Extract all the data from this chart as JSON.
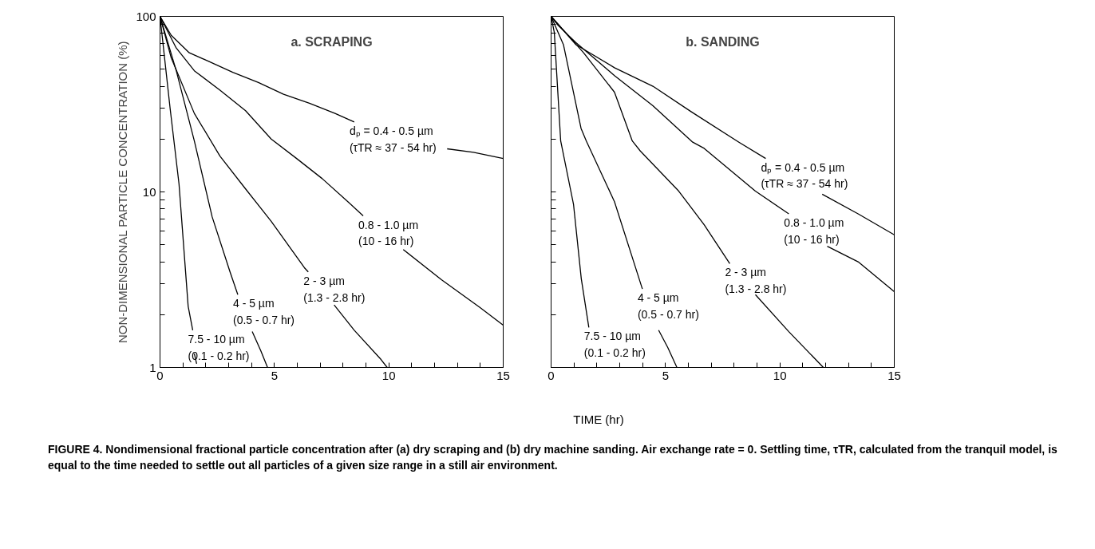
{
  "chart_data": [
    {
      "type": "line",
      "title": "a. SCRAPING",
      "ylabel": "NON-DIMENSIONAL PARTICLE CONCENTRATION (%)",
      "xlabel": "TIME (hr)",
      "log": "y",
      "grid": false,
      "marker": "none",
      "line_style": "solid",
      "xlim": [
        0,
        15
      ],
      "ylim": [
        1,
        100
      ],
      "xticks": [
        0,
        {
          "value": 1,
          "label": null
        },
        {
          "value": 2,
          "label": null
        },
        {
          "value": 3,
          "label": null
        },
        {
          "value": 4,
          "label": null
        },
        5,
        {
          "value": 6,
          "label": null
        },
        {
          "value": 7,
          "label": null
        },
        {
          "value": 8,
          "label": null
        },
        {
          "value": 9,
          "label": null
        },
        10,
        {
          "value": 11,
          "label": null
        },
        {
          "value": 12,
          "label": null
        },
        {
          "value": 13,
          "label": null
        },
        {
          "value": 14,
          "label": null
        },
        15
      ],
      "yticks": [
        1,
        {
          "value": 2,
          "label": null
        },
        {
          "value": 3,
          "label": null
        },
        {
          "value": 4,
          "label": null
        },
        {
          "value": 5,
          "label": null
        },
        {
          "value": 6,
          "label": null
        },
        {
          "value": 7,
          "label": null
        },
        {
          "value": 8,
          "label": null
        },
        {
          "value": 9,
          "label": null
        },
        10,
        {
          "value": 20,
          "label": null
        },
        {
          "value": 30,
          "label": null
        },
        {
          "value": 40,
          "label": null
        },
        {
          "value": 50,
          "label": null
        },
        {
          "value": 60,
          "label": null
        },
        {
          "value": 70,
          "label": null
        },
        {
          "value": 80,
          "label": null
        },
        {
          "value": 90,
          "label": null
        },
        100
      ],
      "series": [
        {
          "name": "dₚ = 0.4 - 0.5 µm\n(τTR ≈ 37 - 54 hr)",
          "color": "#000000",
          "x": [
            0,
            0.49,
            1.28,
            2.05,
            3.18,
            4.3,
            5.4,
            6.53,
            7.65,
            8.49
          ],
          "values": [
            100,
            78,
            62,
            56,
            48,
            42,
            36,
            32,
            28,
            25
          ]
        },
        {
          "color": "#000000",
          "x": [
            12.55,
            13.7,
            15
          ],
          "values": [
            17.6,
            16.8,
            15.5
          ]
        },
        {
          "name": "0.8 - 1.0 µm\n(10 - 16 hr)",
          "color": "#000000",
          "x": [
            0,
            0.71,
            1.5,
            2.62,
            3.74,
            4.86,
            5.97,
            7.09,
            8.21,
            8.88
          ],
          "values": [
            100,
            66,
            49,
            38,
            29,
            20,
            15.5,
            11.9,
            8.8,
            7.3
          ]
        },
        {
          "color": "#000000",
          "x": [
            10.63,
            12.3,
            13.98,
            15
          ],
          "values": [
            4.7,
            3.16,
            2.2,
            1.74
          ]
        },
        {
          "name": "2 - 3 µm\n(1.3 - 2.8 hr)",
          "color": "#000000",
          "x": [
            0,
            0.49,
            1.5,
            2.62,
            3.74,
            4.86,
            6.31,
            6.48
          ],
          "values": [
            100,
            58,
            28,
            16,
            10.4,
            6.8,
            3.7,
            3.5
          ]
        },
        {
          "color": "#000000",
          "x": [
            7.61,
            8.49,
            9.66,
            9.93
          ],
          "values": [
            2.27,
            1.63,
            1.11,
            1.0
          ]
        },
        {
          "name": "4 - 5 µm\n(0.5 - 0.7 hr)",
          "color": "#000000",
          "x": [
            0,
            0.71,
            1.5,
            2.28,
            3.06,
            3.4
          ],
          "values": [
            100,
            49,
            19.5,
            7.2,
            3.5,
            2.6
          ]
        },
        {
          "color": "#000000",
          "x": [
            4.03,
            4.4,
            4.7
          ],
          "values": [
            1.6,
            1.25,
            1.0
          ]
        },
        {
          "name": "7.5 - 10 µm\n(0.1 - 0.2 hr)",
          "color": "#000000",
          "x": [
            0,
            0.44,
            0.83,
            1.23,
            1.43
          ],
          "values": [
            100,
            30,
            11.1,
            2.23,
            1.63
          ]
        },
        {
          "color": "#000000",
          "x": [
            1.5,
            1.6
          ],
          "values": [
            1.2,
            1.05
          ]
        }
      ],
      "annotations": [
        "FIGURE 4.  Nondimensional fractional particle concentration after (a) dry scraping and (b) dry machine sanding. Air exchange rate = 0. Settling time, τTR, calculated from the tranquil model, is equal to the time needed to settle out all particles of a given size range in a still air environment."
      ]
    },
    {
      "type": "line",
      "title": "b. SANDING",
      "tick_labels": "x",
      "log": "y",
      "grid": false,
      "marker": "none",
      "line_style": "solid",
      "xlim": [
        0,
        15
      ],
      "ylim": [
        1,
        100
      ],
      "xticks": [
        0,
        {
          "value": 1,
          "label": null
        },
        {
          "value": 2,
          "label": null
        },
        {
          "value": 3,
          "label": null
        },
        {
          "value": 4,
          "label": null
        },
        5,
        {
          "value": 6,
          "label": null
        },
        {
          "value": 7,
          "label": null
        },
        {
          "value": 8,
          "label": null
        },
        {
          "value": 9,
          "label": null
        },
        10,
        {
          "value": 11,
          "label": null
        },
        {
          "value": 12,
          "label": null
        },
        {
          "value": 13,
          "label": null
        },
        {
          "value": 14,
          "label": null
        },
        15
      ],
      "yticks": [
        1,
        {
          "value": 2,
          "label": null
        },
        {
          "value": 3,
          "label": null
        },
        {
          "value": 4,
          "label": null
        },
        {
          "value": 5,
          "label": null
        },
        {
          "value": 6,
          "label": null
        },
        {
          "value": 7,
          "label": null
        },
        {
          "value": 8,
          "label": null
        },
        {
          "value": 9,
          "label": null
        },
        10,
        {
          "value": 20,
          "label": null
        },
        {
          "value": 30,
          "label": null
        },
        {
          "value": 40,
          "label": null
        },
        {
          "value": 50,
          "label": null
        },
        {
          "value": 60,
          "label": null
        },
        {
          "value": 70,
          "label": null
        },
        {
          "value": 80,
          "label": null
        },
        {
          "value": 90,
          "label": null
        },
        100
      ],
      "series": [
        {
          "name": "dₚ = 0.4 - 0.5 µm\n(τTR ≈ 37 - 54 hr)",
          "color": "#000000",
          "x": [
            0,
            1.09,
            2.77,
            4.45,
            6.13,
            8.21,
            9.38
          ],
          "values": [
            100,
            69,
            51,
            40,
            28.6,
            19.2,
            15.5
          ]
        },
        {
          "color": "#000000",
          "x": [
            11.85,
            13.42,
            15
          ],
          "values": [
            9.7,
            7.5,
            5.7
          ]
        },
        {
          "name": "0.8 - 1.0 µm\n(10 - 16 hr)",
          "color": "#000000",
          "x": [
            0,
            0.3,
            1.08,
            2.77,
            4.45,
            6.19,
            6.69,
            8.93,
            10.39
          ],
          "values": [
            100,
            89,
            71,
            46,
            31,
            19.2,
            17.7,
            10.1,
            7.5
          ]
        },
        {
          "color": "#000000",
          "x": [
            12.07,
            13.42,
            15
          ],
          "values": [
            4.9,
            4.0,
            2.7
          ]
        },
        {
          "name": "2 - 3 µm\n(1.3 - 2.8 hr)",
          "color": "#000000",
          "x": [
            0,
            1.42,
            2.77,
            3.55,
            3.9,
            5.58,
            6.69,
            7.81
          ],
          "values": [
            100,
            62,
            37,
            19.5,
            17.1,
            10.1,
            6.5,
            3.9
          ]
        },
        {
          "color": "#000000",
          "x": [
            8.93,
            10.39,
            11.9
          ],
          "values": [
            2.6,
            1.6,
            1.0
          ]
        },
        {
          "name": "4 - 5 µm\n(0.5 - 0.7 hr)",
          "color": "#000000",
          "x": [
            0,
            0.54,
            1.31,
            1.54,
            2.77,
            3.99
          ],
          "values": [
            100,
            69,
            23,
            19.5,
            8.8,
            2.8
          ]
        },
        {
          "color": "#000000",
          "x": [
            4.7,
            5.1,
            5.5
          ],
          "values": [
            1.63,
            1.3,
            1.0
          ]
        },
        {
          "name": "7.5 - 10 µm\n(0.1 - 0.2 hr)",
          "color": "#000000",
          "x": [
            0,
            0.14,
            0.42,
            0.98,
            1.32,
            1.65
          ],
          "values": [
            100,
            81,
            19.5,
            8.5,
            3.2,
            1.69
          ]
        }
      ]
    }
  ]
}
